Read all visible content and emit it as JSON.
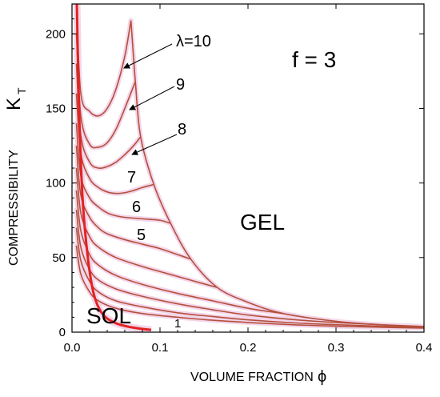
{
  "chart_data": {
    "type": "line",
    "title": "",
    "xlabel": "VOLUME FRACTION",
    "xlabel_symbol": "ϕ",
    "ylabel": "COMPRESSIBILITY",
    "ylabel_symbol": "K",
    "ylabel_subscript": "T",
    "xlim": [
      0,
      0.4
    ],
    "ylim": [
      0,
      220
    ],
    "x_ticks": [
      {
        "value": 0.0,
        "label": "0.0"
      },
      {
        "value": 0.1,
        "label": "0.1"
      },
      {
        "value": 0.2,
        "label": "0.2"
      },
      {
        "value": 0.3,
        "label": "0.3"
      },
      {
        "value": 0.4,
        "label": "0.4"
      }
    ],
    "y_ticks": [
      {
        "value": 0,
        "label": "0"
      },
      {
        "value": 50,
        "label": "50"
      },
      {
        "value": 100,
        "label": "100"
      },
      {
        "value": 150,
        "label": "150"
      },
      {
        "value": 200,
        "label": "200"
      }
    ],
    "grid": false,
    "colors": {
      "curve": "#b5503c",
      "sol_branch": "#e32222",
      "halo": "#f3d6ea"
    },
    "series": [
      {
        "points": [
          [
            0.005,
            220
          ],
          [
            0.01,
            160
          ],
          [
            0.02,
            148
          ],
          [
            0.03,
            145
          ],
          [
            0.04,
            150
          ],
          [
            0.05,
            163
          ],
          [
            0.06,
            185
          ],
          [
            0.067,
            209
          ]
        ]
      },
      {
        "points": [
          [
            0.005,
            200
          ],
          [
            0.01,
            145
          ],
          [
            0.02,
            126
          ],
          [
            0.03,
            124
          ],
          [
            0.04,
            127
          ],
          [
            0.05,
            136
          ],
          [
            0.06,
            150
          ],
          [
            0.072,
            168
          ]
        ]
      },
      {
        "points": [
          [
            0.005,
            180
          ],
          [
            0.01,
            132
          ],
          [
            0.02,
            114
          ],
          [
            0.03,
            110
          ],
          [
            0.04,
            111
          ],
          [
            0.05,
            114
          ],
          [
            0.06,
            119
          ],
          [
            0.07,
            125
          ],
          [
            0.078,
            131
          ]
        ]
      },
      {
        "points": [
          [
            0.005,
            160
          ],
          [
            0.01,
            120
          ],
          [
            0.02,
            103
          ],
          [
            0.03,
            97
          ],
          [
            0.04,
            94
          ],
          [
            0.05,
            93
          ],
          [
            0.06,
            93.5
          ],
          [
            0.07,
            95
          ],
          [
            0.08,
            97
          ],
          [
            0.093,
            99
          ]
        ]
      },
      {
        "points": [
          [
            0.005,
            140
          ],
          [
            0.01,
            105
          ],
          [
            0.02,
            90
          ],
          [
            0.03,
            84
          ],
          [
            0.04,
            80
          ],
          [
            0.05,
            78
          ],
          [
            0.06,
            77
          ],
          [
            0.08,
            76
          ],
          [
            0.1,
            75
          ],
          [
            0.112,
            73
          ]
        ]
      },
      {
        "points": [
          [
            0.005,
            125
          ],
          [
            0.01,
            92
          ],
          [
            0.02,
            77
          ],
          [
            0.03,
            70
          ],
          [
            0.04,
            66
          ],
          [
            0.06,
            62
          ],
          [
            0.08,
            59
          ],
          [
            0.1,
            56
          ],
          [
            0.12,
            52
          ],
          [
            0.135,
            49
          ]
        ]
      },
      {
        "points": [
          [
            0.005,
            110
          ],
          [
            0.01,
            80
          ],
          [
            0.02,
            64
          ],
          [
            0.03,
            57
          ],
          [
            0.05,
            50
          ],
          [
            0.08,
            44
          ],
          [
            0.11,
            39
          ],
          [
            0.14,
            34
          ],
          [
            0.165,
            30
          ]
        ]
      },
      {
        "points": [
          [
            0.005,
            95
          ],
          [
            0.01,
            68
          ],
          [
            0.02,
            52
          ],
          [
            0.03,
            45
          ],
          [
            0.05,
            38
          ],
          [
            0.08,
            32
          ],
          [
            0.12,
            26
          ],
          [
            0.16,
            21
          ],
          [
            0.2,
            16
          ],
          [
            0.24,
            12.5
          ]
        ]
      },
      {
        "points": [
          [
            0.005,
            82
          ],
          [
            0.01,
            57
          ],
          [
            0.02,
            42
          ],
          [
            0.03,
            35
          ],
          [
            0.05,
            29
          ],
          [
            0.08,
            24
          ],
          [
            0.12,
            19
          ],
          [
            0.16,
            15
          ],
          [
            0.2,
            11.5
          ],
          [
            0.25,
            8.5
          ],
          [
            0.3,
            6.5
          ],
          [
            0.35,
            5
          ],
          [
            0.4,
            3.8
          ]
        ]
      },
      {
        "points": [
          [
            0.005,
            70
          ],
          [
            0.01,
            48
          ],
          [
            0.02,
            34
          ],
          [
            0.03,
            27
          ],
          [
            0.05,
            21
          ],
          [
            0.08,
            17
          ],
          [
            0.12,
            13
          ],
          [
            0.16,
            10.5
          ],
          [
            0.2,
            8.3
          ],
          [
            0.25,
            6.3
          ],
          [
            0.3,
            5
          ],
          [
            0.35,
            4
          ],
          [
            0.4,
            3.2
          ]
        ]
      },
      {
        "points": [
          [
            0.005,
            58
          ],
          [
            0.01,
            39
          ],
          [
            0.02,
            27
          ],
          [
            0.03,
            21
          ],
          [
            0.05,
            16
          ],
          [
            0.08,
            12.5
          ],
          [
            0.12,
            10
          ],
          [
            0.16,
            8
          ],
          [
            0.2,
            6.5
          ],
          [
            0.25,
            5
          ],
          [
            0.3,
            4
          ],
          [
            0.35,
            3.3
          ],
          [
            0.4,
            2.7
          ]
        ]
      }
    ],
    "boundary": [
      [
        0.067,
        209
      ],
      [
        0.072,
        168
      ],
      [
        0.078,
        131
      ],
      [
        0.093,
        99
      ],
      [
        0.112,
        73
      ],
      [
        0.135,
        49
      ],
      [
        0.165,
        30
      ],
      [
        0.2,
        20
      ],
      [
        0.24,
        12.5
      ],
      [
        0.3,
        7.3
      ],
      [
        0.35,
        5
      ],
      [
        0.4,
        3.5
      ]
    ],
    "sol_branch": [
      [
        0.0055,
        220
      ],
      [
        0.008,
        150
      ],
      [
        0.012,
        90
      ],
      [
        0.018,
        50
      ],
      [
        0.025,
        25
      ],
      [
        0.035,
        12
      ],
      [
        0.05,
        6
      ],
      [
        0.07,
        3
      ],
      [
        0.09,
        1.5
      ]
    ],
    "annotations": {
      "lambda_top": "λ=10",
      "curve_labels": [
        "9",
        "8",
        "7",
        "6",
        "5"
      ],
      "bottom_label": "1",
      "f_label": "f = 3",
      "gel": "GEL",
      "sol": "SOL"
    }
  }
}
